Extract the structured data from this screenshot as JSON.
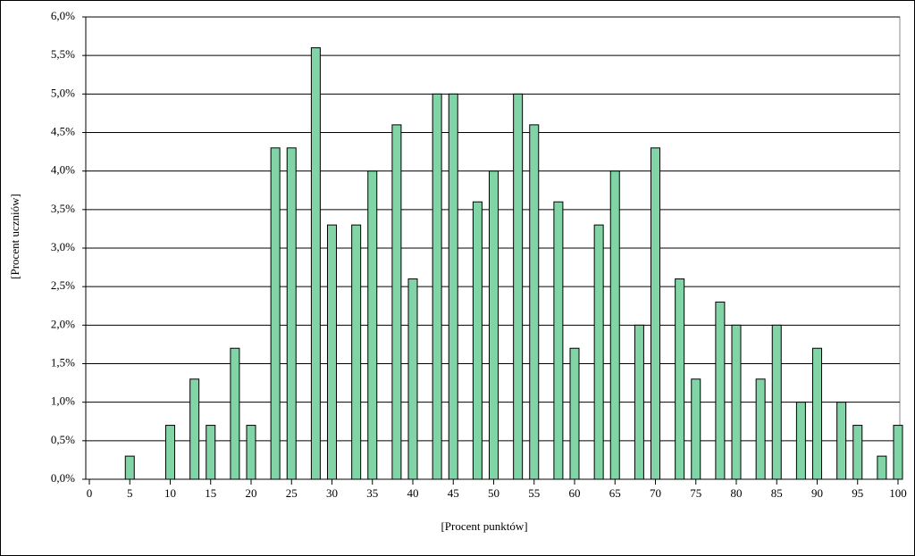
{
  "chart_data": {
    "type": "bar",
    "x_label": "[Procent punktów]",
    "y_label": "[Procent uczniów]",
    "x": [
      5,
      10,
      13,
      15,
      18,
      20,
      23,
      25,
      28,
      30,
      33,
      35,
      38,
      40,
      43,
      45,
      48,
      50,
      53,
      55,
      58,
      60,
      63,
      65,
      68,
      70,
      73,
      75,
      78,
      80,
      83,
      85,
      88,
      90,
      93,
      95,
      98,
      100
    ],
    "values": [
      0.3,
      0.7,
      1.3,
      0.7,
      1.7,
      0.7,
      4.3,
      4.3,
      5.6,
      3.3,
      3.3,
      4.0,
      4.6,
      2.6,
      5.0,
      5.0,
      3.6,
      4.0,
      5.0,
      4.6,
      3.6,
      1.7,
      3.3,
      4.0,
      2.0,
      4.3,
      2.6,
      1.3,
      2.3,
      2.0,
      1.3,
      2.0,
      1.0,
      1.7,
      1.0,
      0.7,
      0.3,
      0.7
    ],
    "color": "#80d4a6",
    "xlim": [
      0,
      100
    ],
    "xticks": [
      0,
      5,
      10,
      15,
      20,
      25,
      30,
      35,
      40,
      45,
      50,
      55,
      60,
      65,
      70,
      75,
      80,
      85,
      90,
      95,
      100
    ],
    "ylim": [
      0,
      6
    ],
    "yticks": [
      {
        "value": 0,
        "label": "0,0%"
      },
      {
        "value": 0.5,
        "label": "0,5%"
      },
      {
        "value": 1,
        "label": "1,0%"
      },
      {
        "value": 1.5,
        "label": "1,5%"
      },
      {
        "value": 2,
        "label": "2,0%"
      },
      {
        "value": 2.5,
        "label": "2,5%"
      },
      {
        "value": 3,
        "label": "3,0%"
      },
      {
        "value": 3.5,
        "label": "3,5%"
      },
      {
        "value": 4,
        "label": "4,0%"
      },
      {
        "value": 4.5,
        "label": "4,5%"
      },
      {
        "value": 5,
        "label": "5,0%"
      },
      {
        "value": 5.5,
        "label": "5,5%"
      },
      {
        "value": 6,
        "label": "6,0%"
      }
    ],
    "grid": true
  }
}
